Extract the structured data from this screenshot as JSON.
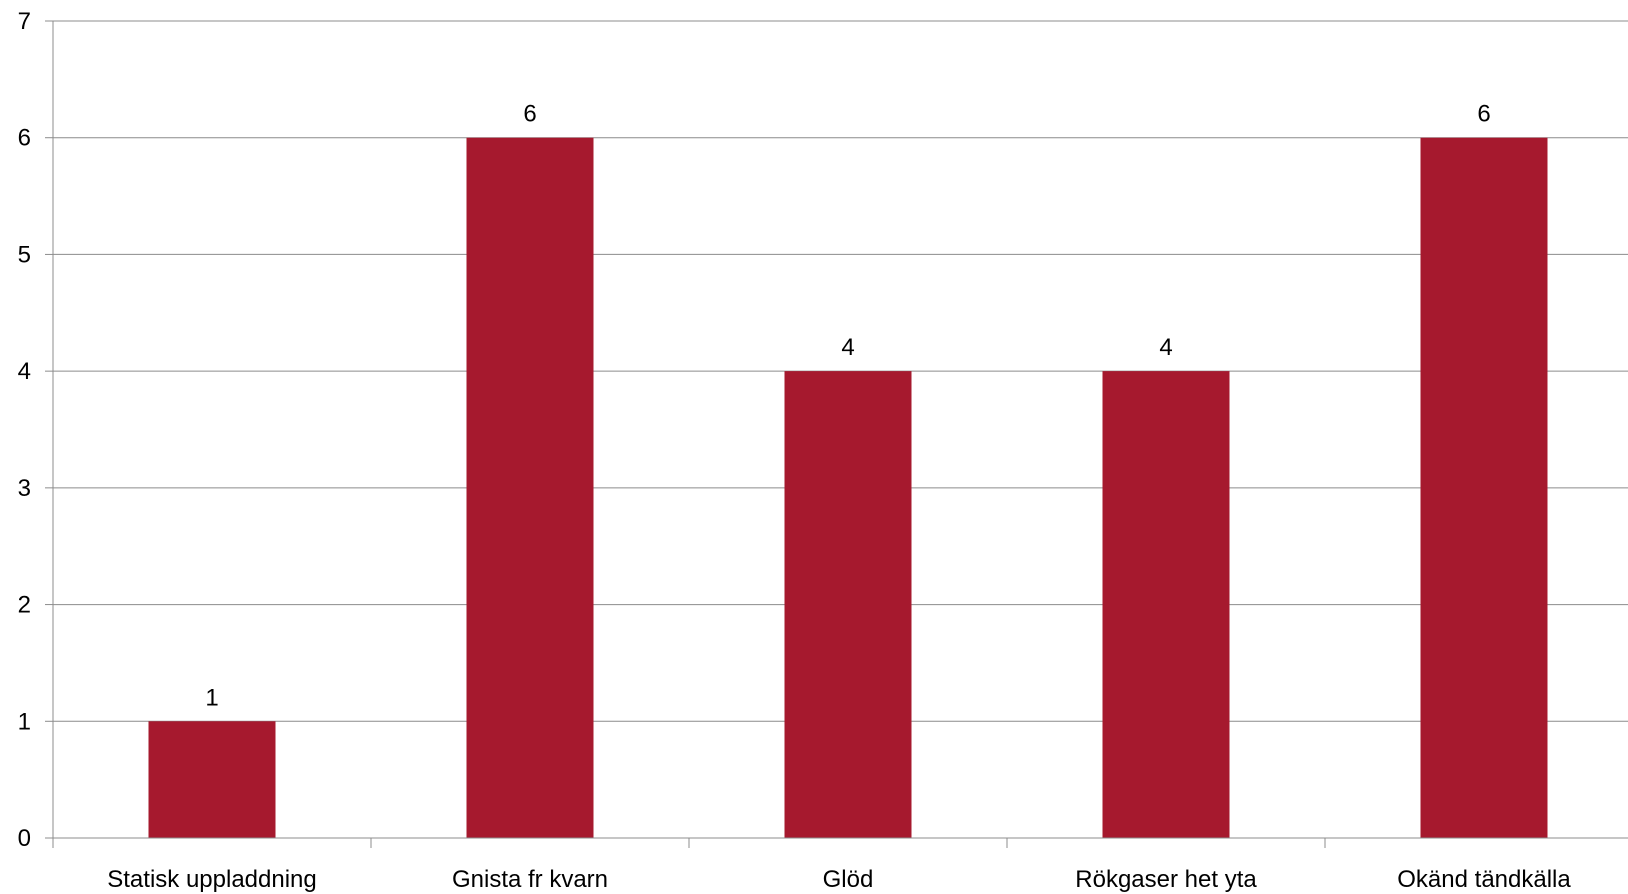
{
  "chart_data": {
    "type": "bar",
    "categories": [
      "Statisk uppladdning",
      "Gnista fr kvarn",
      "Glöd",
      "Rökgaser het yta",
      "Okänd tändkälla"
    ],
    "values": [
      1,
      6,
      4,
      4,
      6
    ],
    "data_labels": [
      "1",
      "6",
      "4",
      "4",
      "6"
    ],
    "title": "",
    "xlabel": "",
    "ylabel": "",
    "ylim": [
      0,
      7
    ],
    "yticks": [
      "0",
      "1",
      "2",
      "3",
      "4",
      "5",
      "6",
      "7"
    ],
    "grid": true,
    "legend": "none",
    "bar_color": "#a6192e"
  }
}
